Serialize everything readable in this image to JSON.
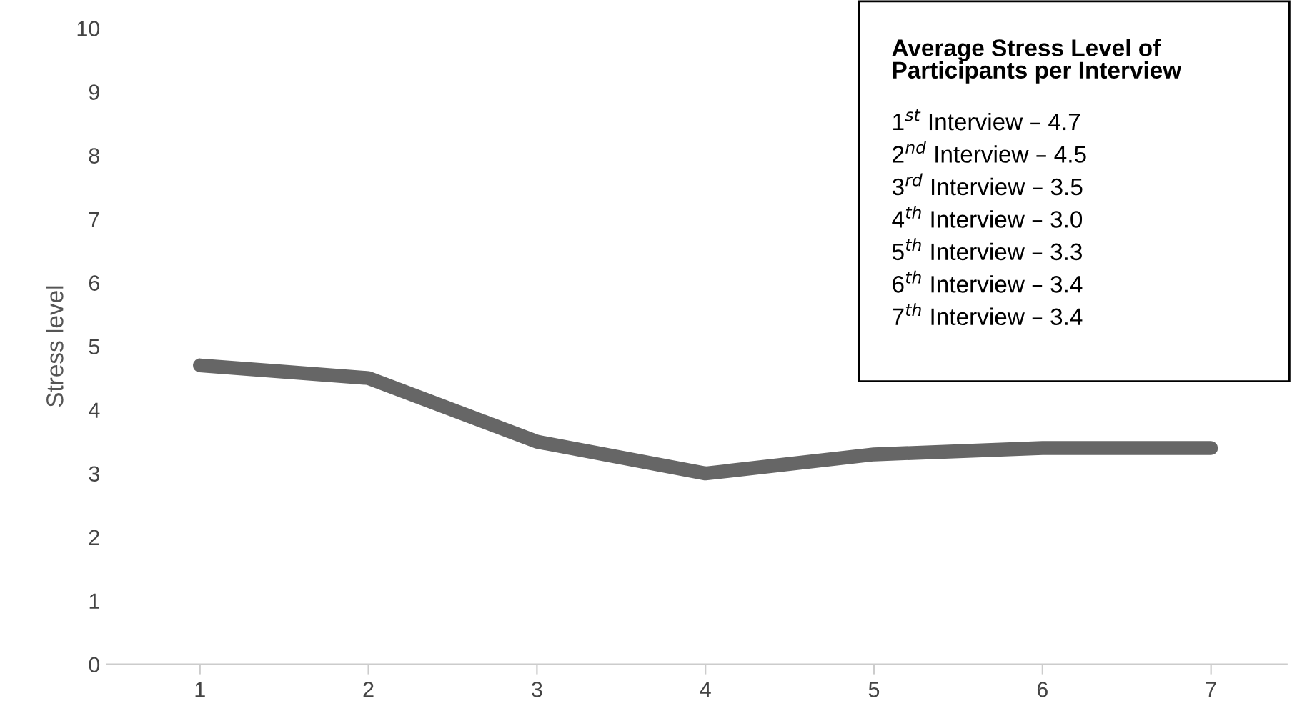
{
  "chart_data": {
    "type": "line",
    "ylabel": "Stress level",
    "categories": [
      "1",
      "2",
      "3",
      "4",
      "5",
      "6",
      "7"
    ],
    "series": [
      {
        "color": "#666666",
        "values": [
          4.7,
          4.5,
          3.5,
          3.0,
          3.3,
          3.4,
          3.4
        ]
      }
    ],
    "ylim": [
      0,
      10
    ],
    "yticks": [
      0,
      1,
      2,
      3,
      4,
      5,
      6,
      7,
      8,
      9,
      10
    ],
    "grid": false,
    "legend": false,
    "marker": "none",
    "line_style": "solid",
    "annotations": [
      "Average Stress Level of\nParticipants per Interview",
      "1$^{st}$ Interview – 4.7",
      "2$^{nd}$ Interview – 4.5",
      "3$^{rd}$ Interview – 3.5",
      "4$^{th}$ Interview – 3.0",
      "5$^{th}$ Interview – 3.3",
      "6$^{th}$ Interview – 3.4",
      "7$^{th}$ Interview – 3.4"
    ]
  }
}
